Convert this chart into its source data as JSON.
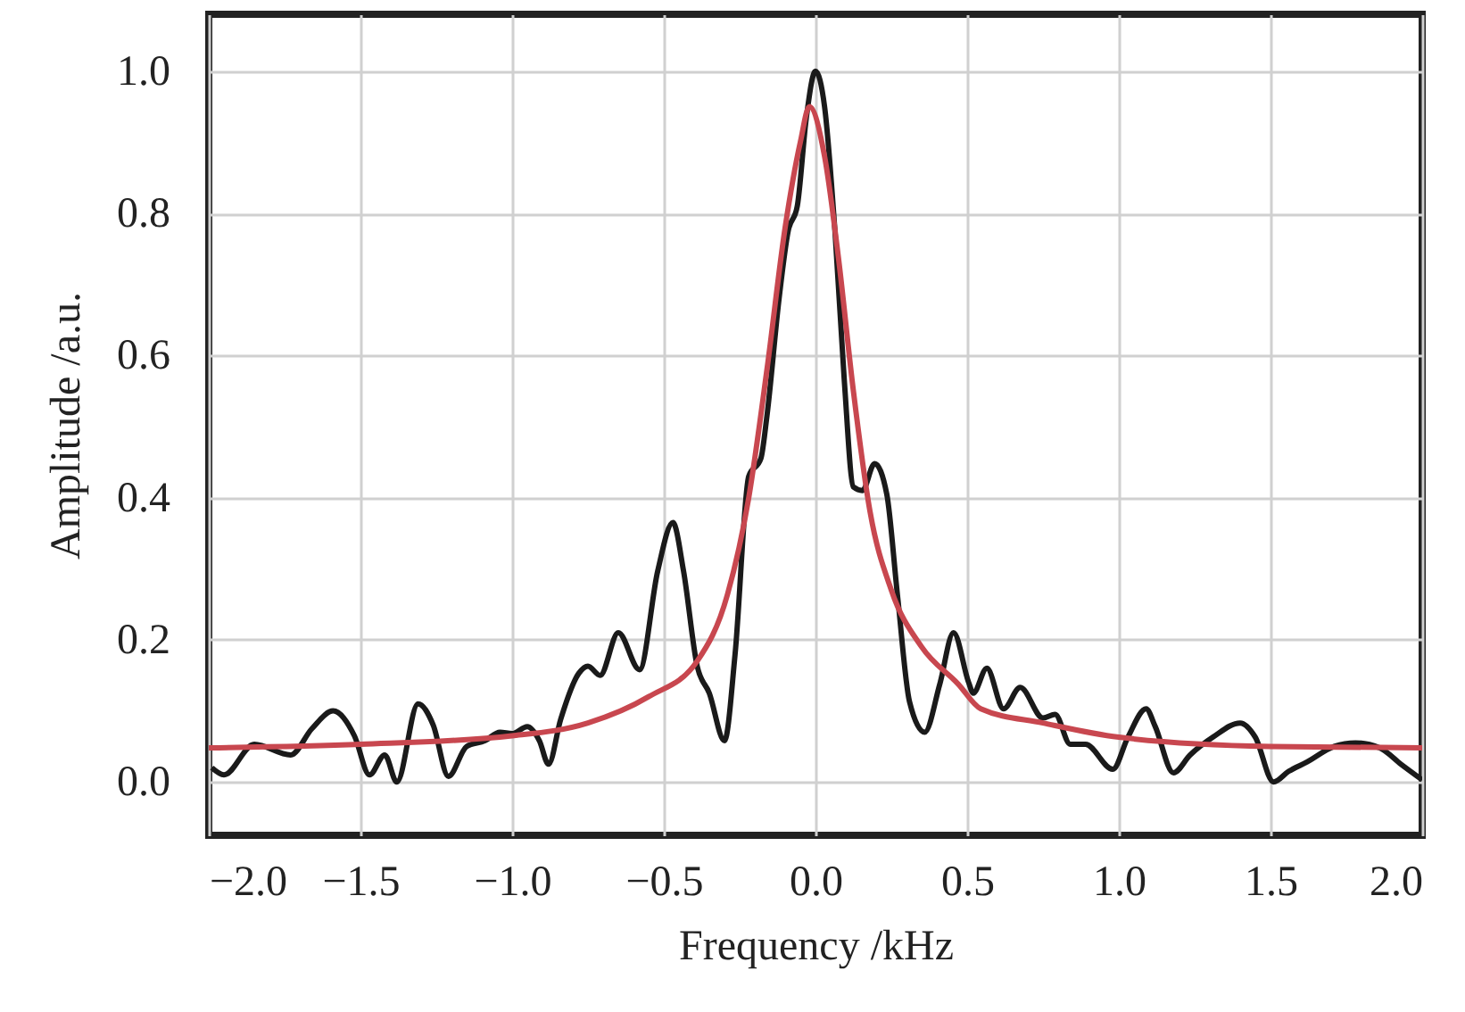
{
  "chart_data": {
    "type": "line",
    "xlabel": "Frequency /kHz",
    "ylabel": "Amplitude /a.u.",
    "xlim": [
      -2.0,
      2.0
    ],
    "xticks": [
      {
        "value": -2.0,
        "label": "−2.0"
      },
      {
        "value": -1.5,
        "label": "−1.5"
      },
      {
        "value": -1.0,
        "label": "−1.0"
      },
      {
        "value": -0.5,
        "label": "−0.5"
      },
      {
        "value": 0,
        "label": "0.0"
      },
      {
        "value": 0.5,
        "label": "0.5"
      },
      {
        "value": 1.0,
        "label": "1.0"
      },
      {
        "value": 1.5,
        "label": "1.5"
      },
      {
        "value": 2.0,
        "label": "2.0"
      }
    ],
    "ylim": [
      -0.075,
      1.08
    ],
    "yticks": [
      {
        "value": 0,
        "label": "0.0"
      },
      {
        "value": 0.2,
        "label": "0.2"
      },
      {
        "value": 0.4,
        "label": "0.4"
      },
      {
        "value": 0.6,
        "label": "0.6"
      },
      {
        "value": 0.8,
        "label": "0.8"
      },
      {
        "value": 1.0,
        "label": "1.0"
      }
    ],
    "grid": true,
    "series": [
      {
        "color": "#1a1a1a",
        "x": [
          -1.99,
          -1.95,
          -1.85,
          -1.73,
          -1.66,
          -1.59,
          -1.52,
          -1.47,
          -1.42,
          -1.38,
          -1.31,
          -1.26,
          -1.21,
          -1.15,
          -1.09,
          -1.04,
          -1.0,
          -0.95,
          -0.91,
          -0.88,
          -0.84,
          -0.78,
          -0.75,
          -0.71,
          -0.65,
          -0.58,
          -0.52,
          -0.47,
          -0.435,
          -0.39,
          -0.35,
          -0.3,
          -0.265,
          -0.22,
          -0.18,
          -0.16,
          -0.12,
          -0.09,
          -0.06,
          -0.03,
          0.0,
          0.03,
          0.065,
          0.095,
          0.125,
          0.155,
          0.195,
          0.235,
          0.27,
          0.31,
          0.36,
          0.41,
          0.455,
          0.505,
          0.52,
          0.565,
          0.62,
          0.675,
          0.75,
          0.79,
          0.84,
          0.89,
          0.98,
          1.03,
          1.09,
          1.12,
          1.18,
          1.235,
          1.31,
          1.4,
          1.45,
          1.51,
          1.56,
          1.62,
          1.71,
          1.78,
          1.86,
          1.93,
          2.0
        ],
        "values": [
          0.02,
          0.01,
          0.053,
          0.038,
          0.075,
          0.1,
          0.065,
          0.01,
          0.038,
          0.0,
          0.11,
          0.08,
          0.008,
          0.05,
          0.058,
          0.07,
          0.068,
          0.078,
          0.058,
          0.025,
          0.088,
          0.153,
          0.163,
          0.15,
          0.21,
          0.158,
          0.297,
          0.365,
          0.297,
          0.163,
          0.125,
          0.058,
          0.18,
          0.43,
          0.455,
          0.515,
          0.68,
          0.775,
          0.81,
          0.935,
          1.0,
          0.95,
          0.77,
          0.565,
          0.415,
          0.41,
          0.448,
          0.405,
          0.264,
          0.113,
          0.07,
          0.138,
          0.21,
          0.14,
          0.125,
          0.16,
          0.103,
          0.133,
          0.09,
          0.095,
          0.053,
          0.053,
          0.018,
          0.063,
          0.103,
          0.078,
          0.013,
          0.038,
          0.063,
          0.083,
          0.063,
          0.0,
          0.015,
          0.028,
          0.05,
          0.055,
          0.048,
          0.025,
          0.003
        ]
      },
      {
        "color": "#c8474f",
        "x": [
          -2.0,
          -1.5,
          -1.0,
          -0.75,
          -0.55,
          -0.39,
          -0.29,
          -0.22,
          -0.16,
          -0.1,
          -0.05,
          -0.02,
          0.03,
          0.075,
          0.125,
          0.18,
          0.25,
          0.35,
          0.47,
          0.545,
          0.75,
          1.0,
          1.5,
          2.0
        ],
        "values": [
          0.048,
          0.053,
          0.065,
          0.083,
          0.12,
          0.17,
          0.264,
          0.4,
          0.58,
          0.78,
          0.9,
          0.95,
          0.88,
          0.74,
          0.55,
          0.38,
          0.27,
          0.19,
          0.138,
          0.103,
          0.083,
          0.063,
          0.05,
          0.048
        ]
      }
    ]
  }
}
